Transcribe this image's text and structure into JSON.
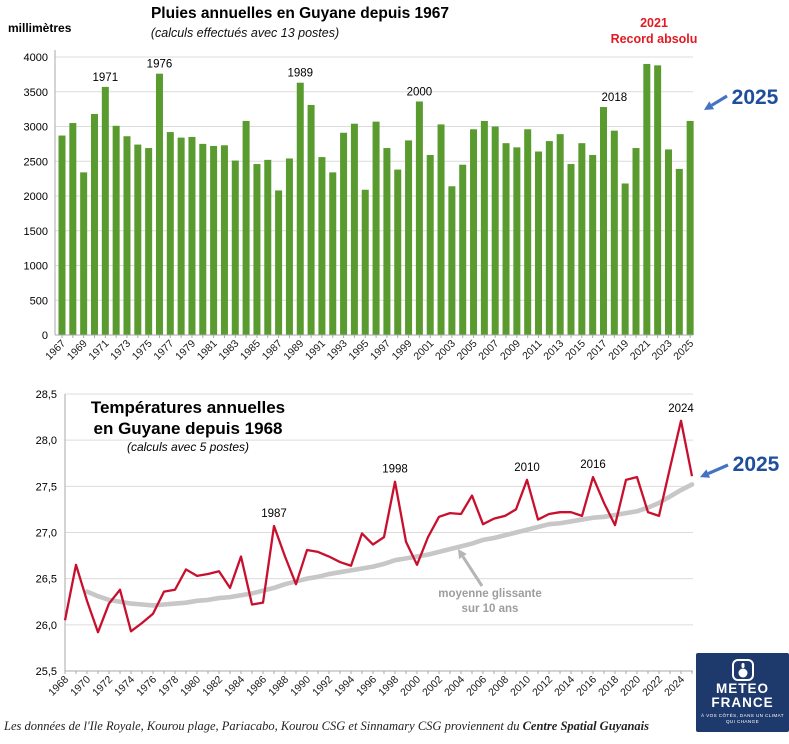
{
  "colors": {
    "bar_green": "#5a9b2f",
    "line_red": "#c8102e",
    "ma_gray": "#c7c7c7",
    "ma_text_gray": "#9d9d9d",
    "callout_blue": "#1f4e9c",
    "arrow_blue": "#4472c4",
    "record_red": "#e11b22",
    "grid_gray": "#dcdcdc",
    "axis_gray": "#a8a8a8",
    "logo_navy": "#1e3a6d"
  },
  "footer": {
    "text": "Les données de l'Ile Royale, Kourou plage, Pariacabo, Kourou CSG et Sinnamary CSG proviennent du ",
    "bold": "Centre Spatial Guyanais"
  },
  "logo": {
    "line1": "METEO",
    "line2": "FRANCE",
    "tagline": "À VOS CÔTÉS, DANS UN CLIMAT QUI CHANGE"
  },
  "chart_data": [
    {
      "type": "bar",
      "title": "Pluies annuelles en Guyane depuis 1967",
      "subtitle": "(calculs effectués avec 13 postes)",
      "ylabel": "millimètres",
      "ylim": [
        0,
        4000
      ],
      "ytick_step": 500,
      "grid": true,
      "legend": "none",
      "xtick_labels": [
        1967,
        1969,
        1971,
        1973,
        1975,
        1977,
        1979,
        1981,
        1983,
        1985,
        1987,
        1989,
        1991,
        1993,
        1995,
        1997,
        1999,
        2001,
        2003,
        2005,
        2007,
        2009,
        2011,
        2013,
        2015,
        2017,
        2019,
        2021,
        2023,
        2025
      ],
      "years": [
        1967,
        1968,
        1969,
        1970,
        1971,
        1972,
        1973,
        1974,
        1975,
        1976,
        1977,
        1978,
        1979,
        1980,
        1981,
        1982,
        1983,
        1984,
        1985,
        1986,
        1987,
        1988,
        1989,
        1990,
        1991,
        1992,
        1993,
        1994,
        1995,
        1996,
        1997,
        1998,
        1999,
        2000,
        2001,
        2002,
        2003,
        2004,
        2005,
        2006,
        2007,
        2008,
        2009,
        2010,
        2011,
        2012,
        2013,
        2014,
        2015,
        2016,
        2017,
        2018,
        2019,
        2020,
        2021,
        2022,
        2023,
        2024,
        2025
      ],
      "values": [
        2870,
        3050,
        2340,
        3180,
        3570,
        3010,
        2860,
        2740,
        2690,
        3760,
        2920,
        2840,
        2850,
        2750,
        2720,
        2730,
        2510,
        3080,
        2460,
        2520,
        2080,
        2540,
        3630,
        3310,
        2560,
        2340,
        2910,
        3040,
        2090,
        3070,
        2690,
        2380,
        2800,
        3360,
        2590,
        3030,
        2140,
        2450,
        2960,
        3080,
        3000,
        2760,
        2700,
        2960,
        2640,
        2790,
        2890,
        2460,
        2760,
        2590,
        3280,
        2940,
        2180,
        2690,
        3900,
        3880,
        2670,
        2390,
        3080
      ],
      "peak_labels": [
        "1971",
        "1976",
        "1989",
        "2000",
        "2018"
      ],
      "record_label": {
        "line1": "2021",
        "line2": "Record absolu"
      },
      "callout_2025": "2025"
    },
    {
      "type": "line",
      "title_line1": "Températures annuelles",
      "title_line2": "en Guyane depuis 1968",
      "subtitle": "(calculs avec 5 postes)",
      "ylim": [
        25.5,
        28.5
      ],
      "ytick_labels": [
        "25,5",
        "26,0",
        "26,5",
        "27,0",
        "27,5",
        "28,0",
        "28,5"
      ],
      "grid": true,
      "legend": "none",
      "xtick_labels": [
        1968,
        1970,
        1972,
        1974,
        1976,
        1978,
        1980,
        1982,
        1984,
        1986,
        1988,
        1990,
        1992,
        1994,
        1996,
        1998,
        2000,
        2002,
        2004,
        2006,
        2008,
        2010,
        2012,
        2014,
        2016,
        2018,
        2020,
        2022,
        2024
      ],
      "series": [
        {
          "name": "moyenne glissante sur 10 ans",
          "color": "#c7c7c7",
          "years": [
            1970,
            1971,
            1972,
            1973,
            1974,
            1975,
            1976,
            1977,
            1978,
            1979,
            1980,
            1981,
            1982,
            1983,
            1984,
            1985,
            1986,
            1987,
            1988,
            1989,
            1990,
            1991,
            1992,
            1993,
            1994,
            1995,
            1996,
            1997,
            1998,
            1999,
            2000,
            2001,
            2002,
            2003,
            2004,
            2005,
            2006,
            2007,
            2008,
            2009,
            2010,
            2011,
            2012,
            2013,
            2014,
            2015,
            2016,
            2017,
            2018,
            2019,
            2020,
            2021,
            2022,
            2023,
            2024,
            2025
          ],
          "values": [
            26.36,
            26.31,
            26.27,
            26.25,
            26.23,
            26.22,
            26.21,
            26.22,
            26.23,
            26.24,
            26.26,
            26.27,
            26.29,
            26.3,
            26.32,
            26.34,
            26.37,
            26.4,
            26.44,
            26.47,
            26.5,
            26.52,
            26.55,
            26.57,
            26.59,
            26.61,
            26.63,
            26.66,
            26.7,
            26.72,
            26.74,
            26.76,
            26.79,
            26.82,
            26.85,
            26.88,
            26.92,
            26.94,
            26.97,
            27.0,
            27.03,
            27.06,
            27.09,
            27.1,
            27.12,
            27.14,
            27.16,
            27.17,
            27.19,
            27.21,
            27.23,
            27.27,
            27.32,
            27.39,
            27.46,
            27.52
          ]
        },
        {
          "name": "températures annuelles",
          "color": "#c8102e",
          "years": [
            1968,
            1969,
            1970,
            1971,
            1972,
            1973,
            1974,
            1975,
            1976,
            1977,
            1978,
            1979,
            1980,
            1981,
            1982,
            1983,
            1984,
            1985,
            1986,
            1987,
            1988,
            1989,
            1990,
            1991,
            1992,
            1993,
            1994,
            1995,
            1996,
            1997,
            1998,
            1999,
            2000,
            2001,
            2002,
            2003,
            2004,
            2005,
            2006,
            2007,
            2008,
            2009,
            2010,
            2011,
            2012,
            2013,
            2014,
            2015,
            2016,
            2017,
            2018,
            2019,
            2020,
            2021,
            2022,
            2023,
            2024,
            2025
          ],
          "values": [
            26.05,
            26.65,
            26.26,
            25.92,
            26.23,
            26.38,
            25.93,
            26.02,
            26.12,
            26.36,
            26.38,
            26.6,
            26.53,
            26.55,
            26.58,
            26.4,
            26.74,
            26.22,
            26.24,
            27.07,
            26.74,
            26.44,
            26.81,
            26.79,
            26.74,
            26.68,
            26.64,
            26.99,
            26.87,
            26.95,
            27.55,
            26.9,
            26.65,
            26.95,
            27.17,
            27.21,
            27.2,
            27.4,
            27.09,
            27.15,
            27.18,
            27.25,
            27.57,
            27.14,
            27.2,
            27.22,
            27.22,
            27.18,
            27.6,
            27.32,
            27.08,
            27.57,
            27.6,
            27.22,
            27.18,
            27.7,
            28.21,
            27.61
          ]
        }
      ],
      "peak_labels": [
        "1987",
        "1998",
        "2010",
        "2016",
        "2024"
      ],
      "ma_label_line1": "moyenne glissante",
      "ma_label_line2": "sur 10 ans",
      "callout_2025": "2025"
    }
  ]
}
